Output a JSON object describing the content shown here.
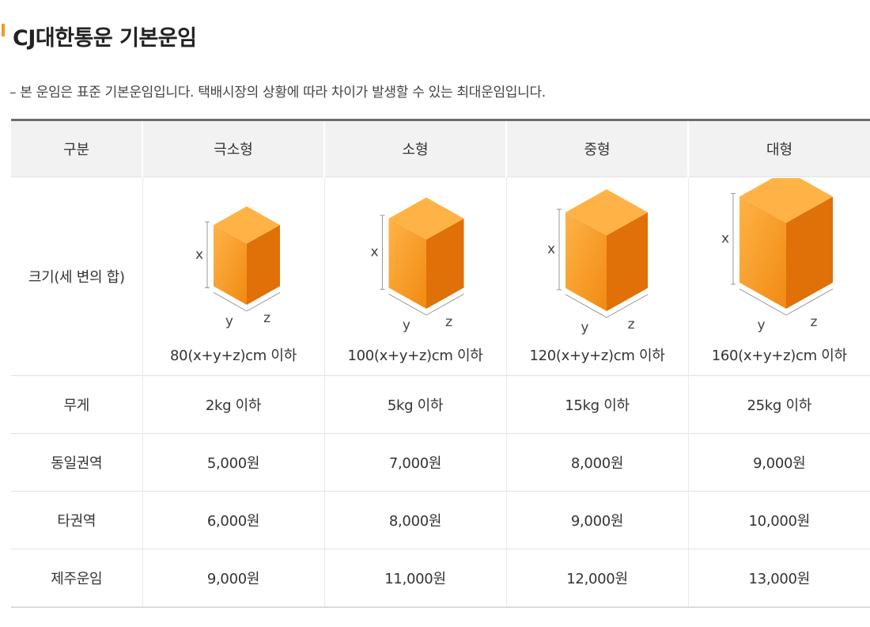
{
  "header": {
    "title": "CJ대한통운 기본운임"
  },
  "notice": "– 본 운임은 표준 기본운임입니다. 택배시장의 상황에 따라 차이가 발생할 수 있는 최대운임입니다.",
  "colors": {
    "accent": "#f39a1e",
    "box_front": "#f08a12",
    "box_top": "#ffb347",
    "box_side": "#e07008"
  },
  "table": {
    "headers": [
      "구분",
      "극소형",
      "소형",
      "중형",
      "대형"
    ],
    "size_row": {
      "label": "크기(세 변의 합)",
      "axis_labels": {
        "x": "x",
        "y": "y",
        "z": "z"
      },
      "icon": "cube-box-icon",
      "values": [
        "80(x+y+z)cm 이하",
        "100(x+y+z)cm 이하",
        "120(x+y+z)cm 이하",
        "160(x+y+z)cm 이하"
      ]
    },
    "rows": [
      {
        "label": "무게",
        "values": [
          "2kg 이하",
          "5kg 이하",
          "15kg 이하",
          "25kg 이하"
        ]
      },
      {
        "label": "동일권역",
        "values": [
          "5,000원",
          "7,000원",
          "8,000원",
          "9,000원"
        ]
      },
      {
        "label": "타권역",
        "values": [
          "6,000원",
          "8,000원",
          "9,000원",
          "10,000원"
        ]
      },
      {
        "label": "제주운임",
        "values": [
          "9,000원",
          "11,000원",
          "12,000원",
          "13,000원"
        ]
      }
    ]
  }
}
